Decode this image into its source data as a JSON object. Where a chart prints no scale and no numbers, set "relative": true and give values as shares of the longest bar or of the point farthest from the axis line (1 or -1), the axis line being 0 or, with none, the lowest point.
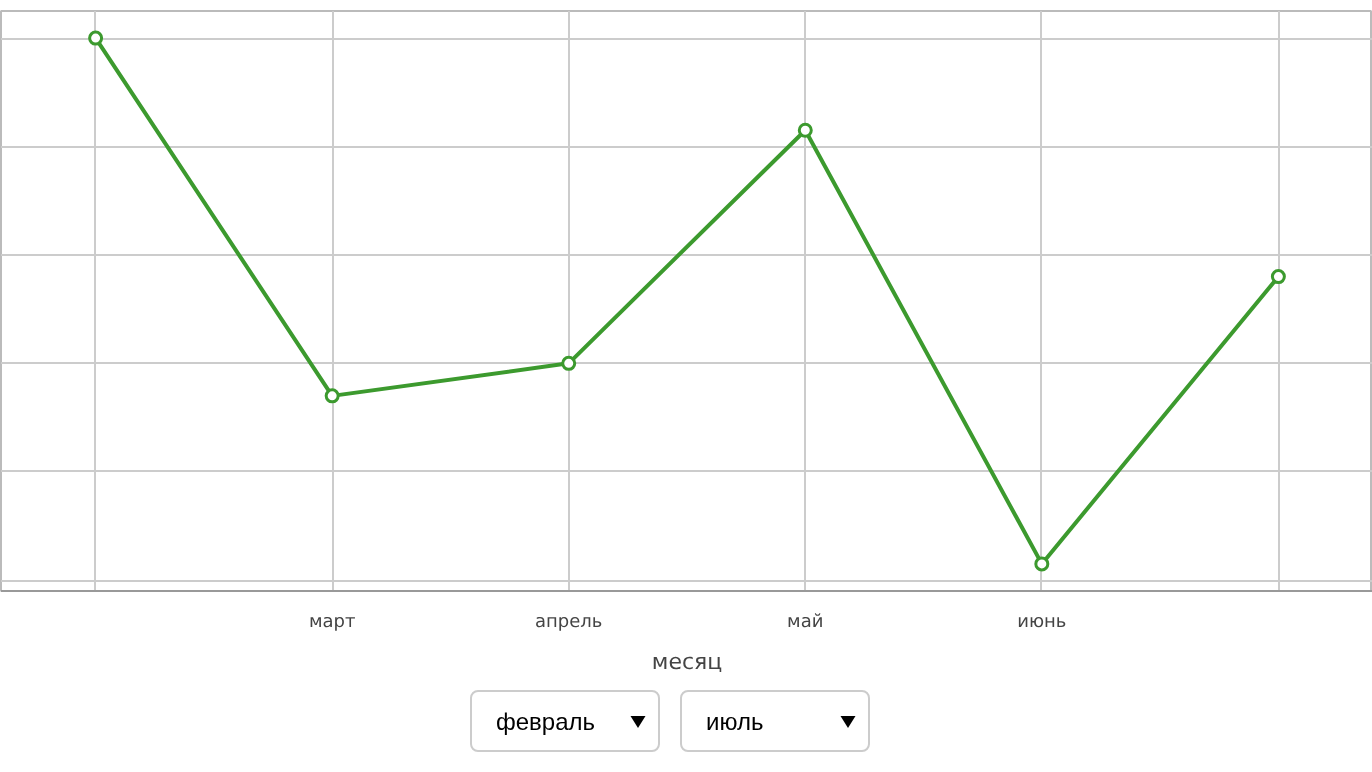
{
  "chart_data": {
    "type": "line",
    "xlabel": "месяц",
    "categories": [
      null,
      "март",
      "апрель",
      "май",
      "июнь",
      null
    ],
    "series": [
      {
        "color": "#3c9a2e",
        "values": [
          1.0,
          0.34,
          0.4,
          0.83,
          0.03,
          0.56
        ]
      }
    ],
    "relative": true,
    "grid": true,
    "marker": "circle",
    "line_style": "solid",
    "annotations": [
      "февраль",
      "июль"
    ]
  }
}
